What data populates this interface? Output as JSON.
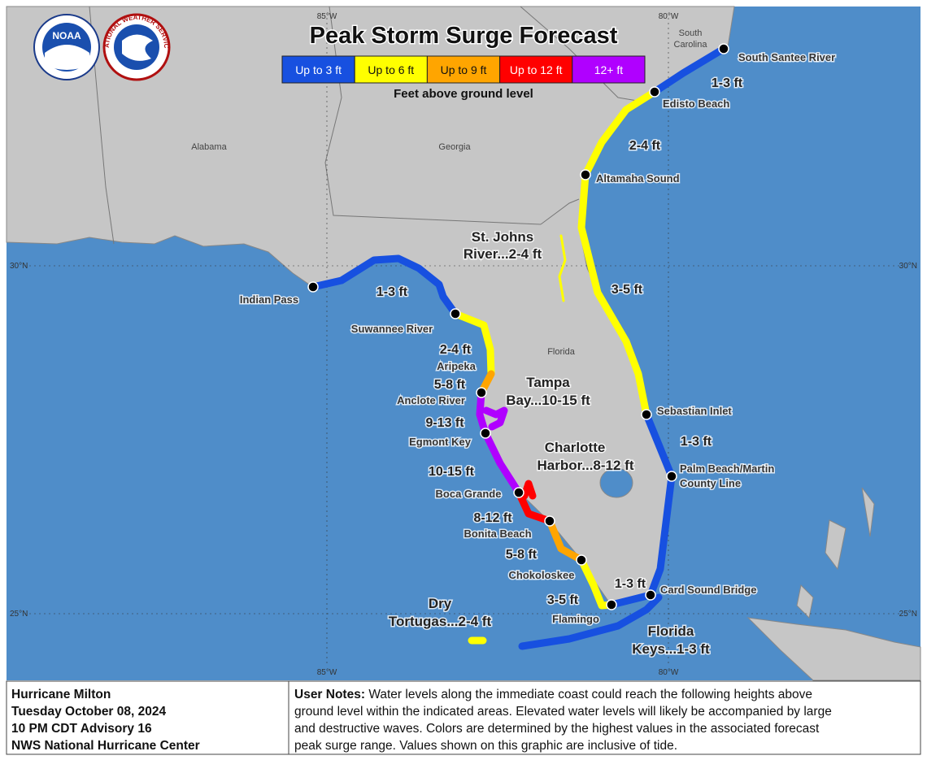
{
  "title": "Peak Storm Surge Forecast",
  "logos": {
    "noaa": "NOAA",
    "nws": "NATIONAL WEATHER SERVICE"
  },
  "legend": {
    "items": [
      {
        "label": "Up to 3 ft",
        "color": "#1750e0"
      },
      {
        "label": "Up to 6 ft",
        "color": "#ffff00"
      },
      {
        "label": "Up to 9 ft",
        "color": "#ffa500"
      },
      {
        "label": "Up to 12 ft",
        "color": "#ff0000"
      },
      {
        "label": "12+ ft",
        "color": "#b000ff"
      }
    ],
    "caption": "Feet above ground level"
  },
  "graticule": {
    "lon": [
      "85°W",
      "80°W"
    ],
    "lat": [
      "30°N",
      "25°N"
    ]
  },
  "states": {
    "alabama": "Alabama",
    "georgia": "Georgia",
    "florida": "Florida",
    "south_carolina": [
      "South",
      "Carolina"
    ]
  },
  "locations": [
    "South Santee River",
    "Edisto Beach",
    "Altamaha Sound",
    "Sebastian Inlet",
    [
      "Palm Beach/Martin",
      "County Line"
    ],
    "Card Sound Bridge",
    "Flamingo",
    "Chokoloskee",
    "Bonita Beach",
    "Boca Grande",
    "Egmont Key",
    "Anclote River",
    "Aripeka",
    "Suwannee River",
    "Indian Pass"
  ],
  "ranges": [
    "1-3 ft",
    "2-4 ft",
    "3-5 ft",
    "1-3 ft",
    "1-3 ft",
    "3-5 ft",
    "5-8 ft",
    "8-12 ft",
    "10-15 ft",
    "9-13 ft",
    "5-8 ft",
    "2-4 ft",
    "1-3 ft"
  ],
  "areas": [
    [
      "St. Johns",
      "River...2-4 ft"
    ],
    [
      "Tampa",
      "Bay...10-15 ft"
    ],
    [
      "Charlotte",
      "Harbor...8-12 ft"
    ],
    [
      "Dry",
      "Tortugas...2-4 ft"
    ],
    [
      "Florida",
      "Keys...1-3 ft"
    ]
  ],
  "info": [
    "Hurricane Milton",
    "Tuesday October 08, 2024",
    "10 PM CDT Advisory 16",
    "NWS National Hurricane Center"
  ],
  "notes": {
    "label": "User Notes:",
    "lines": [
      "Water levels along the immediate coast could reach the following heights above",
      "ground level within the indicated areas. Elevated water levels will likely be accompanied by large",
      "and destructive waves. Colors are determined by the highest values in the associated forecast",
      "peak surge range. Values shown on this graphic are inclusive of tide."
    ]
  }
}
